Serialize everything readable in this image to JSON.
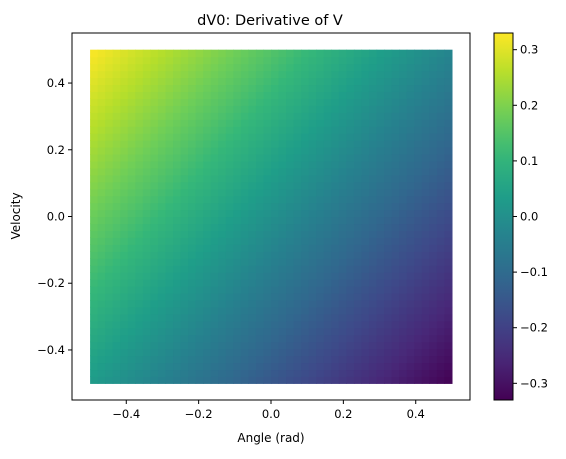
{
  "chart_data": {
    "type": "heatmap",
    "title": "dV0: Derivative of V",
    "xlabel": "Angle (rad)",
    "ylabel": "Velocity",
    "xlim": [
      -0.55,
      0.55
    ],
    "ylim": [
      -0.55,
      0.55
    ],
    "x_range": [
      -0.5,
      0.5
    ],
    "y_range": [
      -0.5,
      0.5
    ],
    "xticks": [
      -0.4,
      -0.2,
      0.0,
      0.2,
      0.4
    ],
    "yticks": [
      -0.4,
      -0.2,
      0.0,
      0.2,
      0.4
    ],
    "xtick_labels": [
      "−0.4",
      "−0.2",
      "0.0",
      "0.2",
      "0.4"
    ],
    "ytick_labels": [
      "−0.4",
      "−0.2",
      "0.0",
      "0.2",
      "0.4"
    ],
    "colormap": "viridis",
    "color_range": [
      -0.33,
      0.33
    ],
    "colorbar_ticks": [
      0.3,
      0.2,
      0.1,
      0.0,
      -0.1,
      -0.2,
      -0.3
    ],
    "colorbar_tick_labels": [
      "0.3",
      "0.2",
      "0.1",
      "0.0",
      "−0.1",
      "−0.2",
      "−0.3"
    ],
    "corner_values": {
      "top_left": 0.33,
      "top_right": -0.03,
      "bottom_left": 0.03,
      "bottom_right": -0.33
    }
  }
}
